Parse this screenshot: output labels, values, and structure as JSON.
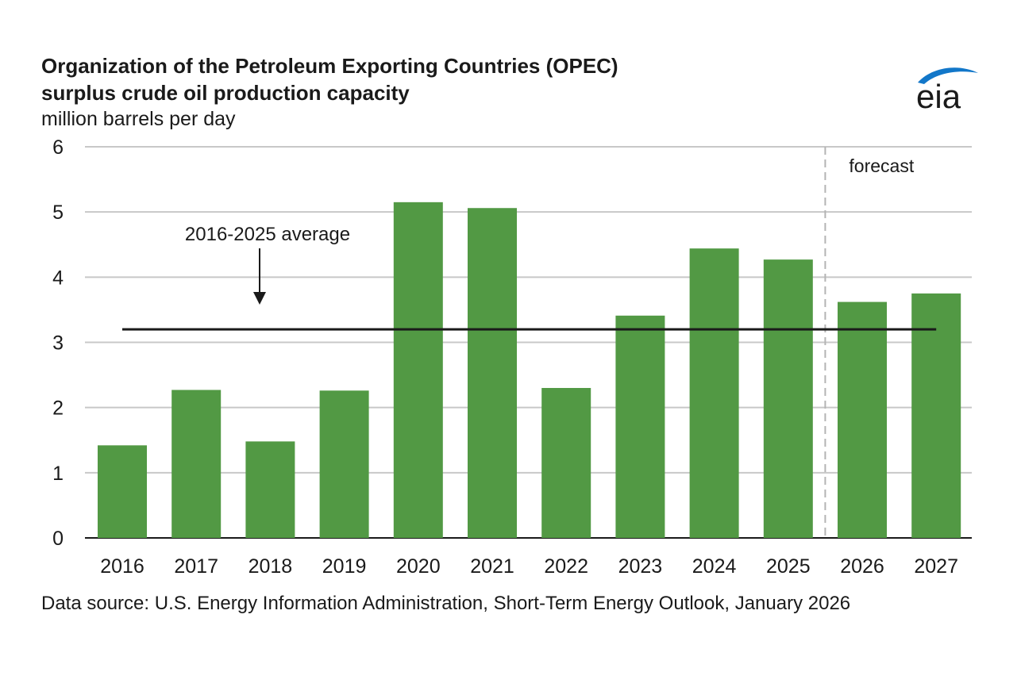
{
  "header": {
    "title_line1": "Organization of the Petroleum Exporting Countries (OPEC)",
    "title_line2": "surplus crude oil production capacity",
    "units": "million barrels per day"
  },
  "logo": {
    "text": "eia",
    "icon": "eia-logo"
  },
  "footer": {
    "source": "Data source: U.S. Energy Information Administration, Short-Term Energy Outlook, January 2026"
  },
  "colors": {
    "bar": "#529944",
    "grid": "#c8c8c8",
    "average_line": "#1a1a1a",
    "logo_swoosh": "#1277c9"
  },
  "chart_data": {
    "type": "bar",
    "title": "Organization of the Petroleum Exporting Countries (OPEC) surplus crude oil production capacity",
    "ylabel": "million barrels per day",
    "xlabel": "",
    "categories": [
      "2016",
      "2017",
      "2018",
      "2019",
      "2020",
      "2021",
      "2022",
      "2023",
      "2024",
      "2025",
      "2026",
      "2027"
    ],
    "values": [
      1.42,
      2.27,
      1.48,
      2.26,
      5.15,
      5.06,
      2.3,
      3.41,
      4.44,
      4.27,
      3.62,
      3.75
    ],
    "ylim": [
      0,
      6
    ],
    "yticks": [
      0,
      1,
      2,
      3,
      4,
      5,
      6
    ],
    "grid": true,
    "average": {
      "label": "2016-2025 average",
      "value": 3.2,
      "from": "2016",
      "to": "2027"
    },
    "forecast": {
      "label": "forecast",
      "starts_after": "2025"
    }
  }
}
